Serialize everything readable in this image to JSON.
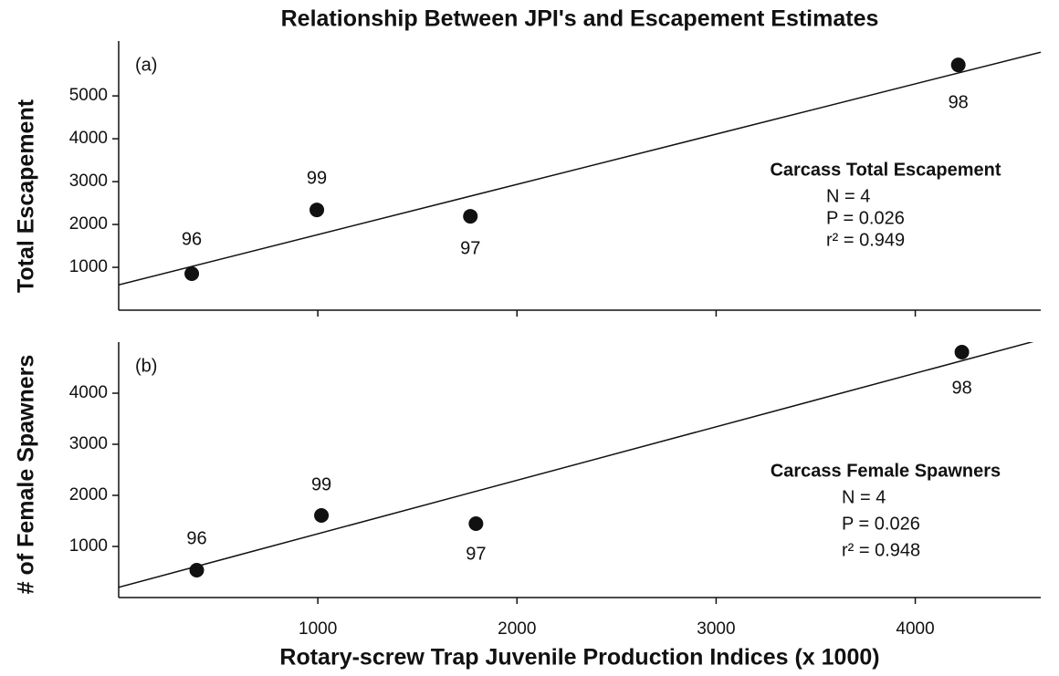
{
  "chart_data": [
    {
      "type": "scatter",
      "title": "Relationship Between JPI's and Escapement Estimates",
      "panel": "(a)",
      "ylabel": "Total Escapement",
      "x": [
        367,
        995,
        1766,
        4216
      ],
      "y": [
        851,
        2340,
        2191,
        5723
      ],
      "labels": [
        "96",
        "99",
        "97",
        "98"
      ],
      "color": "#111111",
      "fit": {
        "x": [
          0,
          4630
        ],
        "y": [
          590,
          6020
        ]
      },
      "annotation_title": "Carcass Total Escapement",
      "annotations": [
        "N = 4",
        "P = 0.026",
        "r² = 0.949"
      ],
      "xlim": [
        0,
        4630
      ],
      "ylim": [
        0,
        6280
      ],
      "xticks": [
        1000,
        2000,
        3000,
        4000
      ],
      "yticks": [
        1000,
        2000,
        3000,
        4000,
        5000
      ]
    },
    {
      "type": "scatter",
      "panel": "(b)",
      "ylabel": "# of Female Spawners",
      "xlabel": "Rotary-screw Trap Juvenile Production Indices (x 1000)",
      "x": [
        392,
        1018,
        1794,
        4234
      ],
      "y": [
        536,
        1607,
        1446,
        4804
      ],
      "labels": [
        "96",
        "99",
        "97",
        "98"
      ],
      "color": "#111111",
      "fit": {
        "x": [
          0,
          4630
        ],
        "y": [
          200,
          5050
        ]
      },
      "annotation_title": "Carcass Female Spawners",
      "annotations": [
        "N = 4",
        "P = 0.026",
        "r² = 0.948"
      ],
      "xlim": [
        0,
        4630
      ],
      "ylim": [
        0,
        5000
      ],
      "xticks": [
        1000,
        2000,
        3000,
        4000
      ],
      "yticks": [
        1000,
        2000,
        3000,
        4000
      ]
    }
  ]
}
